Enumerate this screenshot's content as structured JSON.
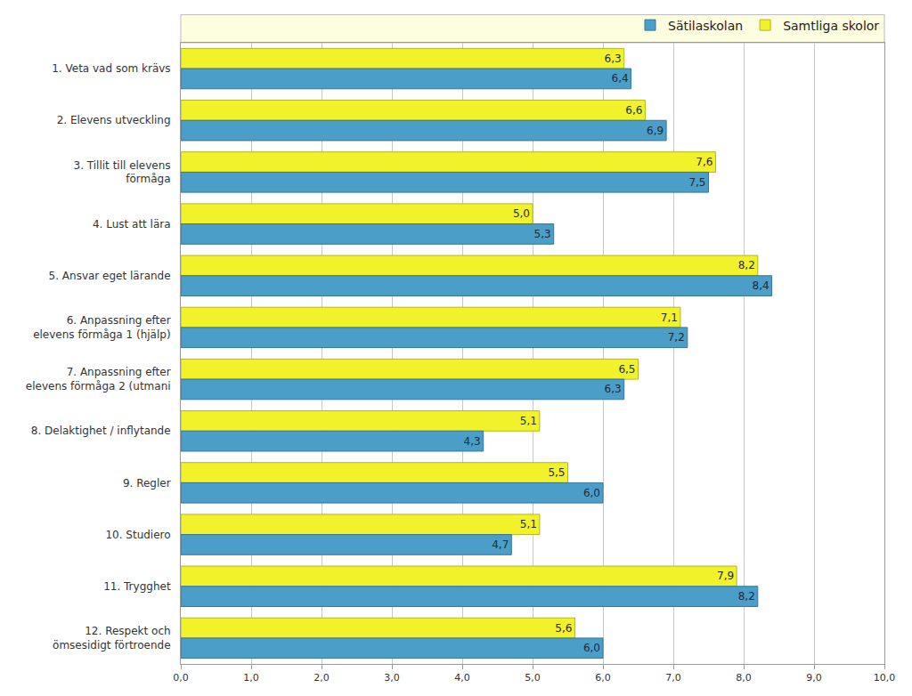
{
  "chart_data": {
    "type": "bar",
    "orientation": "horizontal",
    "categories": [
      "1. Veta vad som krävs",
      "2. Elevens utveckling",
      "3. Tillit till elevens\nförmåga",
      "4. Lust att lära",
      "5. Ansvar eget lärande",
      "6. Anpassning efter\nelevens förmåga 1 (hjälp)",
      "7. Anpassning efter\nelevens förmåga 2 (utmani",
      "8. Delaktighet / inflytande",
      "9. Regler",
      "10. Studiero",
      "11. Trygghet",
      "12. Respekt och\nömsesidigt förtroende"
    ],
    "series": [
      {
        "name": "Sätilaskolan",
        "color": "#4a9ec8",
        "values": [
          6.4,
          6.9,
          7.5,
          5.3,
          8.4,
          7.2,
          6.3,
          4.3,
          6.0,
          4.7,
          8.2,
          6.0
        ],
        "value_labels": [
          "6,4",
          "6,9",
          "7,5",
          "5,3",
          "8,4",
          "7,2",
          "6,3",
          "4,3",
          "6,0",
          "4,7",
          "8,2",
          "6,0"
        ]
      },
      {
        "name": "Samtliga skolor",
        "color": "#f2f22a",
        "values": [
          6.3,
          6.6,
          7.6,
          5.0,
          8.2,
          7.1,
          6.5,
          5.1,
          5.5,
          5.1,
          7.9,
          5.6
        ],
        "value_labels": [
          "6,3",
          "6,6",
          "7,6",
          "5,0",
          "8,2",
          "7,1",
          "6,5",
          "5,1",
          "5,5",
          "5,1",
          "7,9",
          "5,6"
        ]
      }
    ],
    "xlim": [
      0,
      10
    ],
    "xticks": [
      {
        "value": 0,
        "label": "0,0"
      },
      {
        "value": 1,
        "label": "1,0"
      },
      {
        "value": 2,
        "label": "2,0"
      },
      {
        "value": 3,
        "label": "3,0"
      },
      {
        "value": 4,
        "label": "4,0"
      },
      {
        "value": 5,
        "label": "5,0"
      },
      {
        "value": 6,
        "label": "6,0"
      },
      {
        "value": 7,
        "label": "7,0"
      },
      {
        "value": 8,
        "label": "8,0"
      },
      {
        "value": 9,
        "label": "9,0"
      },
      {
        "value": 10,
        "label": "10,0"
      }
    ],
    "grid": true,
    "legend": "top-right",
    "data_labels": true
  }
}
